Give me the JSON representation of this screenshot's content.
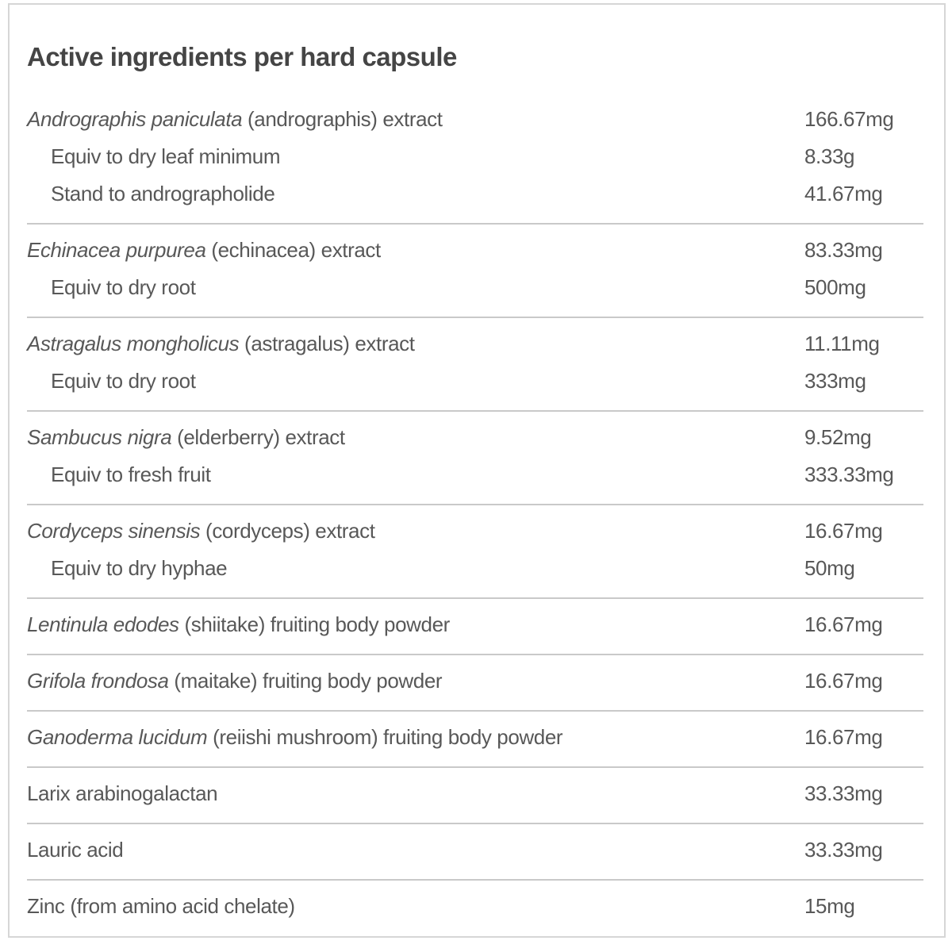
{
  "colors": {
    "title_text": "#454545",
    "body_text": "#585858",
    "divider": "#c9c9c9",
    "frame_border": "#d6d6d6",
    "background": "#ffffff"
  },
  "table": {
    "title": "Active ingredients per hard capsule",
    "groups": [
      {
        "rows": [
          {
            "latin": "Andrographis paniculata",
            "text": " (andrographis) extract",
            "value": "166.67mg"
          },
          {
            "latin": "",
            "text": "Equiv to dry leaf minimum",
            "value": "8.33g"
          },
          {
            "latin": "",
            "text": "Stand to andrographolide",
            "value": "41.67mg"
          }
        ]
      },
      {
        "rows": [
          {
            "latin": "Echinacea purpurea",
            "text": " (echinacea) extract",
            "value": "83.33mg"
          },
          {
            "latin": "",
            "text": "Equiv to dry root",
            "value": "500mg"
          }
        ]
      },
      {
        "rows": [
          {
            "latin": "Astragalus mongholicus",
            "text": " (astragalus) extract",
            "value": "11.11mg"
          },
          {
            "latin": "",
            "text": "Equiv to dry root",
            "value": "333mg"
          }
        ]
      },
      {
        "rows": [
          {
            "latin": "Sambucus nigra",
            "text": " (elderberry) extract",
            "value": "9.52mg"
          },
          {
            "latin": "",
            "text": "Equiv to fresh fruit",
            "value": "333.33mg"
          }
        ]
      },
      {
        "rows": [
          {
            "latin": "Cordyceps sinensis",
            "text": " (cordyceps) extract",
            "value": "16.67mg"
          },
          {
            "latin": "",
            "text": "Equiv to dry hyphae",
            "value": "50mg"
          }
        ]
      },
      {
        "rows": [
          {
            "latin": "Lentinula edodes",
            "text": " (shiitake) fruiting body powder",
            "value": "16.67mg"
          }
        ]
      },
      {
        "rows": [
          {
            "latin": "Grifola frondosa",
            "text": " (maitake) fruiting body powder",
            "value": "16.67mg"
          }
        ]
      },
      {
        "rows": [
          {
            "latin": "Ganoderma lucidum",
            "text": " (reiishi mushroom) fruiting body powder",
            "value": "16.67mg"
          }
        ]
      },
      {
        "rows": [
          {
            "latin": "",
            "text": "Larix arabinogalactan",
            "value": "33.33mg"
          }
        ]
      },
      {
        "rows": [
          {
            "latin": "",
            "text": "Lauric acid",
            "value": "33.33mg"
          }
        ]
      },
      {
        "rows": [
          {
            "latin": "",
            "text": "Zinc (from amino acid chelate)",
            "value": "15mg"
          }
        ]
      }
    ]
  }
}
